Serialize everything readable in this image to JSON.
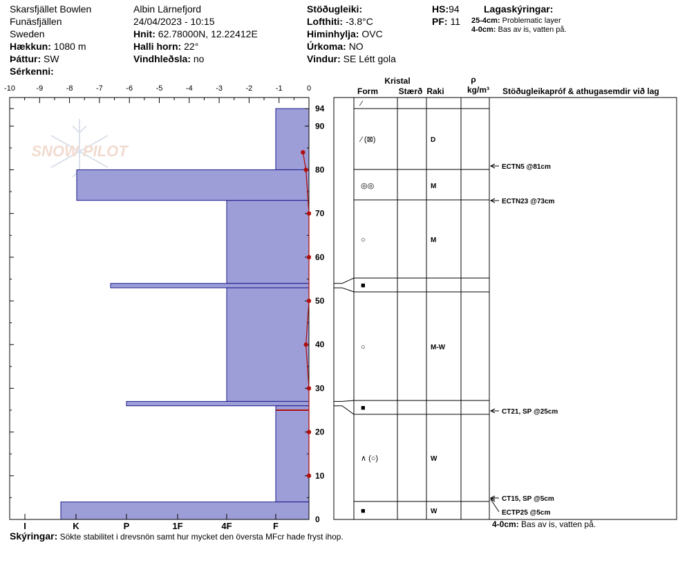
{
  "header": {
    "location": "Skarsfjället Bowlen",
    "region": "Funäsfjällen",
    "country": "Sweden",
    "elevation_label": "Hækkun:",
    "elevation_value": "1080 m",
    "aspect_label": "Þáttur:",
    "aspect_value": "SW",
    "special_label": "Sérkenni:",
    "observer": "Albin  Lärnefjord",
    "datetime": "24/04/2023 - 10:15",
    "coords_label": "Hnit:",
    "coords_value": "62.78000N, 12.22412E",
    "slope_label": "Halli horn:",
    "slope_value": "22°",
    "wind_loading_label": "Vindhleðsla:",
    "wind_loading_value": "no",
    "stability_label": "Stöðugleiki:",
    "air_temp_label": "Lofthiti:",
    "air_temp_value": "-3.8°C",
    "sky_label": "Himinhylja:",
    "sky_value": "OVC",
    "precip_label": "Úrkoma:",
    "precip_value": "NO",
    "wind_label": "Vindur:",
    "wind_value": "SE Létt gola",
    "hs_label": "HS:",
    "hs_value": "94",
    "pf_label": "PF:",
    "pf_value": "11",
    "layer_notes_title": "Lagaskýringar:",
    "layer_notes": [
      {
        "range": "25-4cm:",
        "text": "Problematic layer"
      },
      {
        "range": "4-0cm:",
        "text": "Bas av is, vatten på."
      }
    ]
  },
  "table_headers": {
    "crystal": "Kristal",
    "form": "Form",
    "size": "Stærð",
    "moisture": "Raki",
    "density_symbol": "ρ",
    "density_unit": "kg/m³",
    "tests": "Stöðugleikapróf & athugasemdir við lag"
  },
  "footer": {
    "bottom_note_range": "4-0cm:",
    "bottom_note_text": "Bas av is, vatten på.",
    "comments_label": "Skýringar:",
    "comments_text": "Sökte stabilitet i drevsnön samt hur mycket den översta MFcr hade fryst ihop."
  },
  "watermark": "SNOW PILOT",
  "chart_data": {
    "type": "bar",
    "title": "",
    "temp_axis": {
      "ticks": [
        -10,
        -9,
        -8,
        -7,
        -6,
        -5,
        -4,
        -3,
        -2,
        -1,
        0
      ],
      "range": [
        -10,
        0
      ]
    },
    "hardness_axis": {
      "ticks": [
        "I",
        "K",
        "P",
        "1F",
        "4F",
        "F"
      ]
    },
    "height_axis": {
      "range": [
        0,
        94
      ],
      "ticks": [
        0,
        10,
        20,
        30,
        40,
        50,
        60,
        70,
        80,
        90,
        94
      ]
    },
    "hardness_layers": [
      {
        "top": 94,
        "bottom": 80,
        "hardness": "F"
      },
      {
        "top": 80,
        "bottom": 73,
        "hardness": "K-"
      },
      {
        "top": 73,
        "bottom": 54,
        "hardness": "4F"
      },
      {
        "top": 54,
        "bottom": 53,
        "hardness": "P+"
      },
      {
        "top": 53,
        "bottom": 27,
        "hardness": "4F"
      },
      {
        "top": 27,
        "bottom": 26,
        "hardness": "P"
      },
      {
        "top": 26,
        "bottom": 4,
        "hardness": "F"
      },
      {
        "top": 4,
        "bottom": 0,
        "hardness": "K+"
      }
    ],
    "temperature_profile": [
      {
        "height": 84,
        "temp": -0.2
      },
      {
        "height": 80,
        "temp": -0.1
      },
      {
        "height": 70,
        "temp": 0
      },
      {
        "height": 60,
        "temp": 0
      },
      {
        "height": 50,
        "temp": 0
      },
      {
        "height": 40,
        "temp": -0.1
      },
      {
        "height": 30,
        "temp": 0
      },
      {
        "height": 20,
        "temp": 0
      },
      {
        "height": 10,
        "temp": 0
      }
    ],
    "layers": [
      {
        "top": 94,
        "bottom": 94,
        "form": "⁄",
        "moisture": ""
      },
      {
        "top": 94,
        "bottom": 80,
        "form": "⁄ (⊠)",
        "moisture": "D"
      },
      {
        "top": 80,
        "bottom": 73,
        "form": "◎◎",
        "moisture": "M"
      },
      {
        "top": 73,
        "bottom": 55,
        "form": "○",
        "moisture": "M"
      },
      {
        "top": 55,
        "bottom": 52,
        "form": "■",
        "moisture": ""
      },
      {
        "top": 52,
        "bottom": 27,
        "form": "○",
        "moisture": "M-W"
      },
      {
        "top": 27,
        "bottom": 24,
        "form": "■",
        "moisture": ""
      },
      {
        "top": 24,
        "bottom": 4,
        "form": "∧ (○)",
        "moisture": "W"
      },
      {
        "top": 4,
        "bottom": 0,
        "form": "■",
        "moisture": "W"
      }
    ],
    "stability_tests": [
      {
        "label": "ECTN5 @81cm",
        "height": 81
      },
      {
        "label": "ECTN23 @73cm",
        "height": 73
      },
      {
        "label": "CT21, SP @25cm",
        "height": 25
      },
      {
        "label": "CT15, SP @5cm",
        "height": 5
      },
      {
        "label": "ECTP25 @5cm",
        "height": 5
      }
    ]
  }
}
